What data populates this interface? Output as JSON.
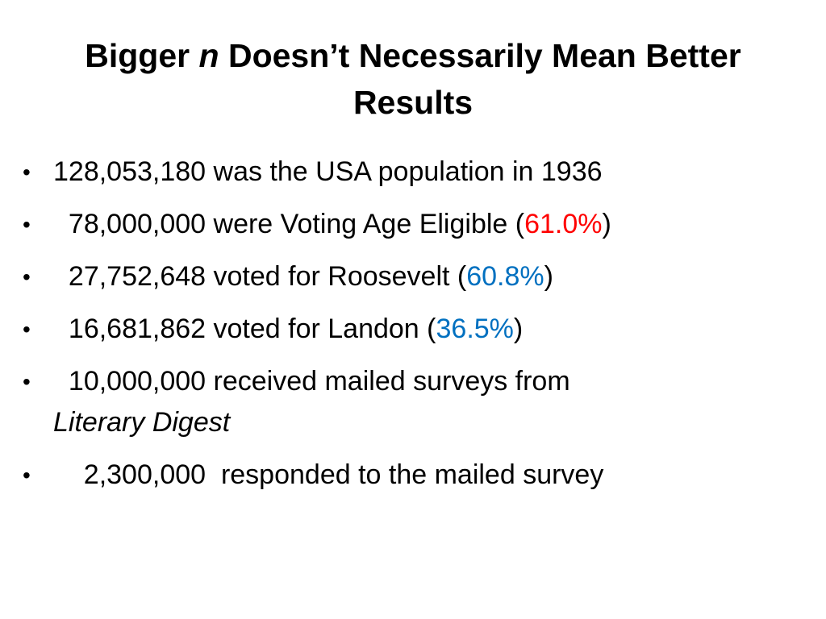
{
  "slide": {
    "title": {
      "part1": "Bigger ",
      "italic": "n",
      "part2": " Doesn’t Necessarily Mean Better",
      "line2": "Results"
    },
    "bullets": [
      {
        "text": "128,053,180 was the USA population in 1936"
      },
      {
        "lead": "78,000,000 were Voting Age Eligible (",
        "pct": "61.0%",
        "trail": ")",
        "pct_color": "#ff0000"
      },
      {
        "lead": "27,752,648 voted for Roosevelt (",
        "pct": "60.8%",
        "trail": ")",
        "pct_color": "#0070c0"
      },
      {
        "lead": "16,681,862 voted for Landon (",
        "pct": "36.5%",
        "trail": ")",
        "pct_color": "#0070c0"
      },
      {
        "lead": "10,000,000 received mailed surveys from",
        "italic_line": "Literary Digest"
      },
      {
        "text": "2,300,000  responded to the mailed survey"
      }
    ],
    "bullet_glyph": "•"
  }
}
